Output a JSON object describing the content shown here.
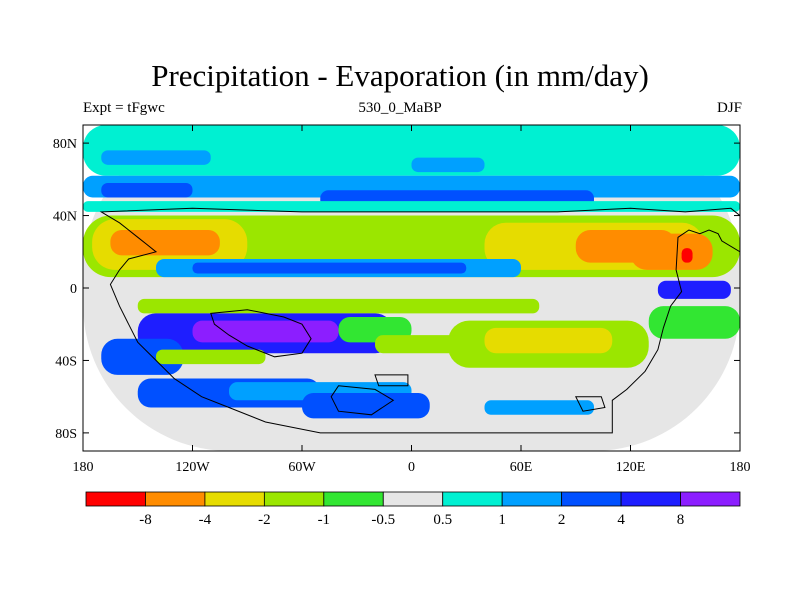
{
  "chart_data": {
    "type": "heatmap",
    "title": "Precipitation - Evaporation (in mm/day)",
    "subtitle_left": "Expt = tFgwc",
    "subtitle_center": "530_0_MaBP",
    "subtitle_right": "DJF",
    "xlabel": "",
    "ylabel": "",
    "xlim": [
      -180,
      180
    ],
    "ylim": [
      -90,
      90
    ],
    "x_ticks": [
      {
        "value": -180,
        "label": "180"
      },
      {
        "value": -120,
        "label": "120W"
      },
      {
        "value": -60,
        "label": "60W"
      },
      {
        "value": 0,
        "label": "0"
      },
      {
        "value": 60,
        "label": "60E"
      },
      {
        "value": 120,
        "label": "120E"
      },
      {
        "value": 180,
        "label": "180"
      }
    ],
    "y_ticks": [
      {
        "value": 80,
        "label": "80N"
      },
      {
        "value": 40,
        "label": "40N"
      },
      {
        "value": 0,
        "label": "0"
      },
      {
        "value": -40,
        "label": "40S"
      },
      {
        "value": -80,
        "label": "80S"
      }
    ],
    "levels": [
      "-8",
      "-4",
      "-2",
      "-1",
      "-0.5",
      "0.5",
      "1",
      "2",
      "4",
      "8"
    ],
    "colors": [
      "#ff0000",
      "#ff8c00",
      "#e6dc00",
      "#9be600",
      "#32e632",
      "#e6e6e6",
      "#00f0d2",
      "#00a0ff",
      "#0050ff",
      "#1e1eff",
      "#8c1eff"
    ],
    "fields": [
      {
        "lon": -180,
        "lat": -90,
        "wlon": 360,
        "hlat": 180,
        "class": 5
      },
      {
        "lon": -180,
        "lat": 62,
        "wlon": 360,
        "hlat": 28,
        "class": 6
      },
      {
        "lon": -180,
        "lat": 50,
        "wlon": 360,
        "hlat": 12,
        "class": 7
      },
      {
        "lon": -170,
        "lat": 50,
        "wlon": 50,
        "hlat": 8,
        "class": 8
      },
      {
        "lon": -170,
        "lat": 68,
        "wlon": 60,
        "hlat": 8,
        "class": 7
      },
      {
        "lon": 0,
        "lat": 64,
        "wlon": 40,
        "hlat": 8,
        "class": 7
      },
      {
        "lon": -50,
        "lat": 44,
        "wlon": 150,
        "hlat": 10,
        "class": 8
      },
      {
        "lon": -180,
        "lat": 42,
        "wlon": 360,
        "hlat": 6,
        "class": 6
      },
      {
        "lon": -180,
        "lat": 6,
        "wlon": 360,
        "hlat": 34,
        "class": 3
      },
      {
        "lon": -175,
        "lat": 10,
        "wlon": 85,
        "hlat": 28,
        "class": 2
      },
      {
        "lon": -165,
        "lat": 18,
        "wlon": 60,
        "hlat": 14,
        "class": 1
      },
      {
        "lon": 40,
        "lat": 10,
        "wlon": 120,
        "hlat": 26,
        "class": 2
      },
      {
        "lon": 90,
        "lat": 14,
        "wlon": 55,
        "hlat": 18,
        "class": 1
      },
      {
        "lon": -140,
        "lat": 6,
        "wlon": 200,
        "hlat": 10,
        "class": 7
      },
      {
        "lon": -120,
        "lat": 8,
        "wlon": 150,
        "hlat": 6,
        "class": 8
      },
      {
        "lon": -150,
        "lat": -14,
        "wlon": 220,
        "hlat": 8,
        "class": 3
      },
      {
        "lon": -150,
        "lat": -36,
        "wlon": 140,
        "hlat": 22,
        "class": 9
      },
      {
        "lon": -120,
        "lat": -30,
        "wlon": 80,
        "hlat": 12,
        "class": 10
      },
      {
        "lon": -170,
        "lat": -48,
        "wlon": 45,
        "hlat": 20,
        "class": 8
      },
      {
        "lon": -140,
        "lat": -42,
        "wlon": 60,
        "hlat": 8,
        "class": 3
      },
      {
        "lon": 20,
        "lat": -44,
        "wlon": 110,
        "hlat": 26,
        "class": 3
      },
      {
        "lon": 40,
        "lat": -36,
        "wlon": 70,
        "hlat": 14,
        "class": 2
      },
      {
        "lon": -40,
        "lat": -30,
        "wlon": 40,
        "hlat": 14,
        "class": 4
      },
      {
        "lon": -20,
        "lat": -36,
        "wlon": 50,
        "hlat": 10,
        "class": 3
      },
      {
        "lon": 130,
        "lat": -28,
        "wlon": 50,
        "hlat": 18,
        "class": 4
      },
      {
        "lon": -150,
        "lat": -66,
        "wlon": 100,
        "hlat": 16,
        "class": 8
      },
      {
        "lon": -100,
        "lat": -62,
        "wlon": 100,
        "hlat": 10,
        "class": 7
      },
      {
        "lon": -60,
        "lat": -72,
        "wlon": 70,
        "hlat": 14,
        "class": 8
      },
      {
        "lon": 40,
        "lat": -70,
        "wlon": 60,
        "hlat": 8,
        "class": 7
      },
      {
        "lon": 120,
        "lat": 10,
        "wlon": 45,
        "hlat": 20,
        "class": 1
      },
      {
        "lon": 135,
        "lat": -6,
        "wlon": 40,
        "hlat": 10,
        "class": 9
      },
      {
        "lon": 148,
        "lat": 14,
        "wlon": 6,
        "hlat": 8,
        "class": 0
      }
    ],
    "continents": [
      [
        [
          -170,
          42
        ],
        [
          -160,
          36
        ],
        [
          -150,
          28
        ],
        [
          -145,
          24
        ],
        [
          -140,
          20
        ],
        [
          -155,
          16
        ],
        [
          -160,
          10
        ],
        [
          -165,
          2
        ],
        [
          -160,
          -10
        ],
        [
          -155,
          -20
        ],
        [
          -150,
          -30
        ],
        [
          -140,
          -40
        ],
        [
          -130,
          -50
        ],
        [
          -115,
          -60
        ],
        [
          -100,
          -66
        ],
        [
          -80,
          -74
        ],
        [
          -50,
          -80
        ],
        [
          0,
          -80
        ],
        [
          60,
          -80
        ],
        [
          110,
          -80
        ],
        [
          110,
          -62
        ],
        [
          118,
          -56
        ],
        [
          128,
          -46
        ],
        [
          135,
          -34
        ],
        [
          138,
          -22
        ],
        [
          142,
          -10
        ],
        [
          148,
          -2
        ],
        [
          145,
          10
        ],
        [
          146,
          28
        ],
        [
          152,
          32
        ],
        [
          158,
          30
        ],
        [
          163,
          32
        ],
        [
          168,
          30
        ],
        [
          170,
          26
        ],
        [
          180,
          20
        ],
        [
          180,
          40
        ],
        [
          175,
          44
        ],
        [
          150,
          42
        ],
        [
          120,
          44
        ],
        [
          80,
          42
        ],
        [
          40,
          42
        ],
        [
          0,
          42
        ],
        [
          -60,
          42
        ],
        [
          -120,
          44
        ],
        [
          -170,
          42
        ]
      ],
      [
        [
          -110,
          -14
        ],
        [
          -90,
          -12
        ],
        [
          -70,
          -16
        ],
        [
          -60,
          -20
        ],
        [
          -55,
          -28
        ],
        [
          -60,
          -36
        ],
        [
          -75,
          -38
        ],
        [
          -90,
          -32
        ],
        [
          -100,
          -26
        ],
        [
          -108,
          -20
        ],
        [
          -110,
          -14
        ]
      ],
      [
        [
          -40,
          -54
        ],
        [
          -20,
          -56
        ],
        [
          -10,
          -62
        ],
        [
          -22,
          -70
        ],
        [
          -40,
          -68
        ],
        [
          -44,
          -60
        ],
        [
          -40,
          -54
        ]
      ],
      [
        [
          -20,
          -48
        ],
        [
          -2,
          -48
        ],
        [
          -2,
          -54
        ],
        [
          -18,
          -54
        ],
        [
          -20,
          -48
        ]
      ],
      [
        [
          90,
          -60
        ],
        [
          104,
          -60
        ],
        [
          106,
          -66
        ],
        [
          94,
          -68
        ],
        [
          90,
          -60
        ]
      ]
    ]
  }
}
